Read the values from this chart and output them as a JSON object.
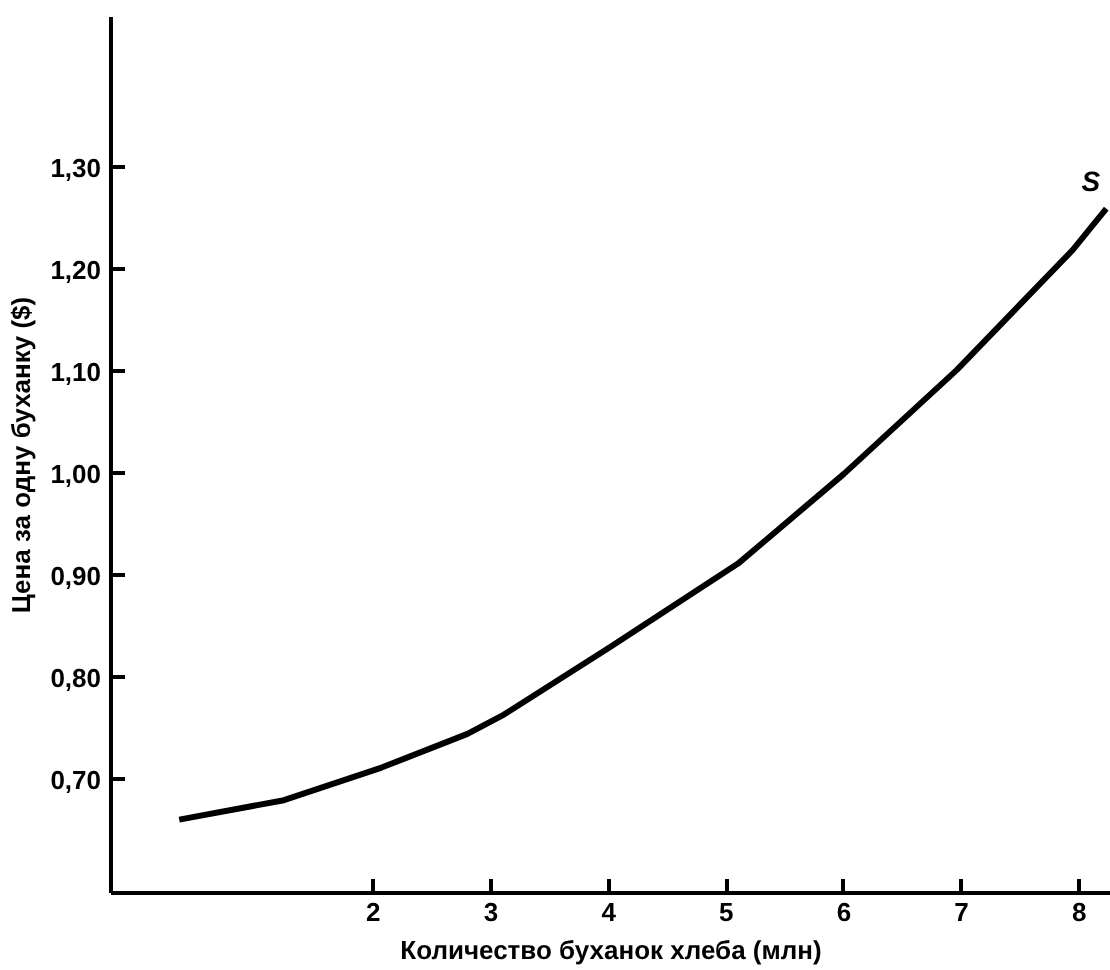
{
  "chart_data": {
    "type": "line",
    "xlabel": "Количество буханок хлеба (млн)",
    "ylabel": "Цена за одну буханку ($)",
    "x": [
      0.35,
      1.24,
      2.07,
      2.8,
      3.11,
      4.01,
      5.1,
      6.0,
      6.96,
      7.94,
      8.23
    ],
    "series": [
      {
        "name": "S",
        "color": "#000000",
        "values": [
          0.661,
          0.68,
          0.712,
          0.745,
          0.764,
          0.83,
          0.912,
          1.0,
          1.102,
          1.219,
          1.26
        ]
      }
    ],
    "xlim": [
      -0.23,
      8.27
    ],
    "ylim": [
      0.589,
      1.448
    ],
    "xticks": [
      2,
      3,
      4,
      5,
      6,
      7,
      8
    ],
    "yticks": [
      {
        "value": 0.7,
        "label": "0,70"
      },
      {
        "value": 0.8,
        "label": "0,80"
      },
      {
        "value": 0.9,
        "label": "0,90"
      },
      {
        "value": 1.0,
        "label": "1,00"
      },
      {
        "value": 1.1,
        "label": "1,10"
      },
      {
        "value": 1.2,
        "label": "1,20"
      },
      {
        "value": 1.3,
        "label": "1,30"
      }
    ],
    "grid": false,
    "legend": false,
    "marker": "none",
    "line_style": "solid"
  }
}
